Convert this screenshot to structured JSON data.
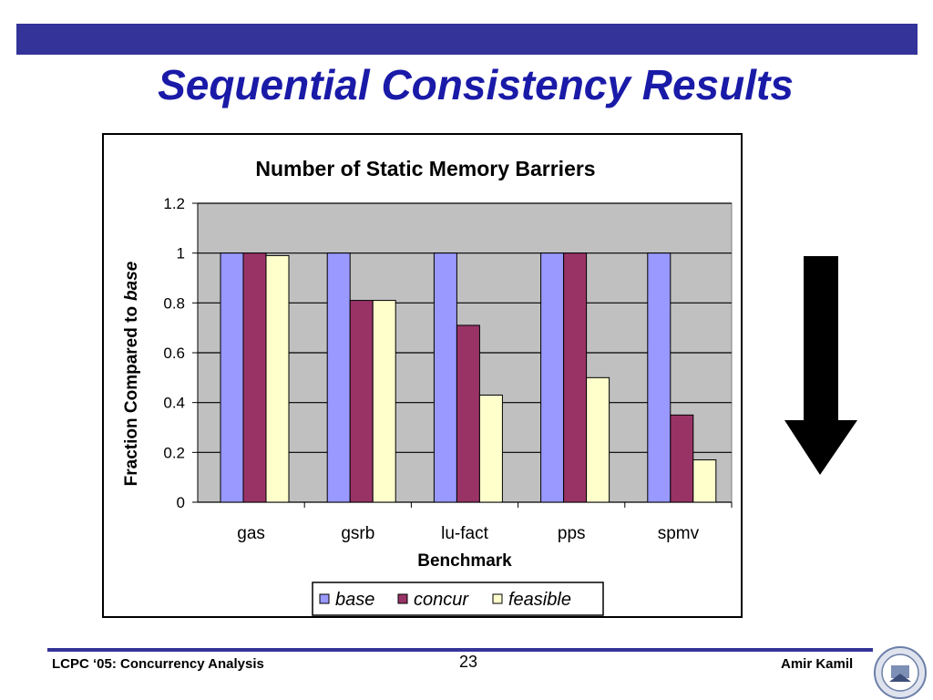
{
  "slide": {
    "title": "Sequential Consistency Results",
    "footer_left": "LCPC ‘05: Concurrency Analysis",
    "page_number": "23",
    "footer_right": "Amir Kamil",
    "seal_icon": "university-seal-icon",
    "arrow_icon": "down-arrow-icon"
  },
  "colors": {
    "top_bar": "#333399",
    "title": "#1a1aa8",
    "plot_bg": "#c0c0c0",
    "base": "#9999ff",
    "concur": "#993366",
    "feasible": "#ffffcc"
  },
  "chart_data": {
    "type": "bar",
    "title": "Number of Static Memory Barriers",
    "xlabel": "Benchmark",
    "ylabel_prefix": "Fraction Compared to",
    "ylabel_emphasis": "base",
    "categories": [
      "gas",
      "gsrb",
      "lu-fact",
      "pps",
      "spmv"
    ],
    "series": [
      {
        "name": "base",
        "values": [
          1,
          1,
          1,
          1,
          1
        ]
      },
      {
        "name": "concur",
        "values": [
          1,
          0.81,
          0.71,
          1,
          0.35
        ]
      },
      {
        "name": "feasible",
        "values": [
          0.99,
          0.81,
          0.43,
          0.5,
          0.17
        ]
      }
    ],
    "ylim": [
      0,
      1.2
    ],
    "yticks": [
      "0",
      "0.2",
      "0.4",
      "0.6",
      "0.8",
      "1",
      "1.2"
    ],
    "grid": true,
    "legend_position": "bottom"
  }
}
